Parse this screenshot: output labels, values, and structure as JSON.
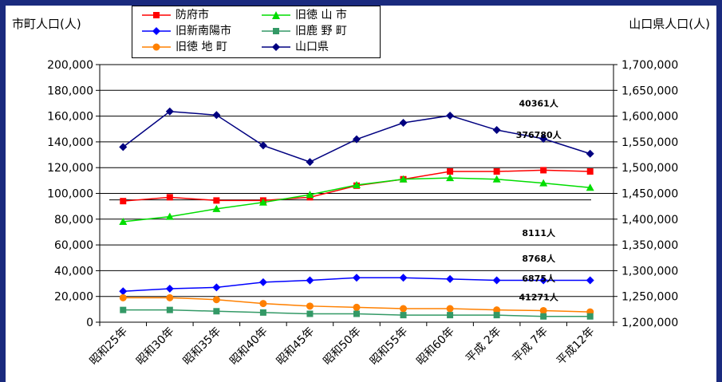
{
  "chart_data": {
    "type": "line",
    "ylabel": "市町人口(人)",
    "y2label": "山口県人口(人)",
    "categories": [
      "昭和25年",
      "昭和30年",
      "昭和35年",
      "昭和40年",
      "昭和45年",
      "昭和50年",
      "昭和55年",
      "昭和60年",
      "平成 2年",
      "平成 7年",
      "平成12年"
    ],
    "ylim": [
      0,
      200000
    ],
    "y2lim": [
      1200000,
      1700000
    ],
    "yticks": [
      "0",
      "20,000",
      "40,000",
      "60,000",
      "80,000",
      "100,000",
      "120,000",
      "140,000",
      "160,000",
      "180,000",
      "200,000"
    ],
    "y2ticks": [
      "1,200,000",
      "1,250,000",
      "1,300,000",
      "1,350,000",
      "1,400,000",
      "1,450,000",
      "1,500,000",
      "1,550,000",
      "1,600,000",
      "1,650,000",
      "1,700,000"
    ],
    "grid": true,
    "legend_position": "top",
    "series": [
      {
        "name": "防府市",
        "axis": "left",
        "color": "#ff0000",
        "marker": "square",
        "values": [
          94000,
          97000,
          94500,
          94500,
          97000,
          106000,
          111000,
          117000,
          117000,
          118000,
          117000
        ]
      },
      {
        "name": "旧新南陽市",
        "axis": "left",
        "color": "#0000ff",
        "marker": "diamond",
        "values": [
          24000,
          26000,
          27000,
          31000,
          32500,
          34500,
          34500,
          33500,
          32500,
          32500,
          32500
        ]
      },
      {
        "name": "旧徳 地 町",
        "axis": "left",
        "color": "#ff8000",
        "marker": "circle",
        "values": [
          19000,
          19000,
          17500,
          14500,
          12500,
          11500,
          10500,
          10500,
          9500,
          9000,
          8000
        ]
      },
      {
        "name": "旧徳 山 市",
        "axis": "left",
        "color": "#00dd00",
        "marker": "triangle",
        "values": [
          78000,
          82000,
          88000,
          93000,
          99000,
          106500,
          111000,
          112000,
          111000,
          108000,
          104500
        ]
      },
      {
        "name": "旧鹿 野 町",
        "axis": "left",
        "color": "#339966",
        "marker": "square",
        "values": [
          9500,
          9500,
          8500,
          7500,
          6500,
          6500,
          5500,
          5500,
          5500,
          4500,
          4500
        ]
      },
      {
        "name": "山口県",
        "axis": "right",
        "color": "#000080",
        "marker": "diamond",
        "values": [
          1540000,
          1609000,
          1602000,
          1543000,
          1511000,
          1555000,
          1587000,
          1601000,
          1573000,
          1556000,
          1527000
        ]
      }
    ],
    "reference_line": {
      "value": 95000,
      "axis": "left"
    },
    "annotations": [
      {
        "text": "40361人",
        "x_index": 9,
        "value": 170000
      },
      {
        "text": "376780人",
        "x_index": 9,
        "value": 145500
      },
      {
        "text": "8111人",
        "x_index": 9,
        "value": 69500
      },
      {
        "text": "8768人",
        "x_index": 9,
        "value": 49500
      },
      {
        "text": "6875人",
        "x_index": 9,
        "value": 34000
      },
      {
        "text": "41271人",
        "x_index": 9,
        "value": 19500
      }
    ]
  }
}
